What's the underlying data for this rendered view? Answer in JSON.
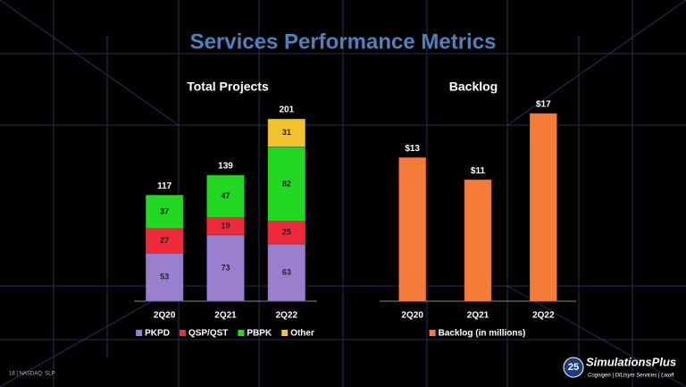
{
  "title": "Services Performance Metrics",
  "footer": "16 | NASDAQ: SLP",
  "logo": {
    "badge": "25",
    "name": "SimulationsPlus",
    "tagline": "Cognigen | DILIsym Services | Lixoft"
  },
  "chart_data": [
    {
      "type": "stacked_bar",
      "title": "Total Projects",
      "categories": [
        "2Q20",
        "2Q21",
        "2Q22"
      ],
      "series": [
        {
          "name": "PKPD",
          "color": "#9b7fcf",
          "values": [
            53,
            73,
            63
          ]
        },
        {
          "name": "QSP/QST",
          "color": "#ee2a3c",
          "values": [
            27,
            19,
            25
          ]
        },
        {
          "name": "PBPK",
          "color": "#22d822",
          "values": [
            37,
            47,
            82
          ]
        },
        {
          "name": "Other",
          "color": "#f2c12e",
          "values": [
            null,
            null,
            31
          ]
        }
      ],
      "totals": [
        117,
        139,
        201
      ],
      "legend": "bottom"
    },
    {
      "type": "bar",
      "title": "Backlog",
      "categories": [
        "2Q20",
        "2Q21",
        "2Q22"
      ],
      "series": [
        {
          "name": "Backlog (in millions)",
          "color": "#f47b38",
          "values": [
            13,
            11,
            17
          ],
          "value_labels": [
            "$13",
            "$11",
            "$17"
          ]
        }
      ],
      "legend": "bottom"
    }
  ]
}
